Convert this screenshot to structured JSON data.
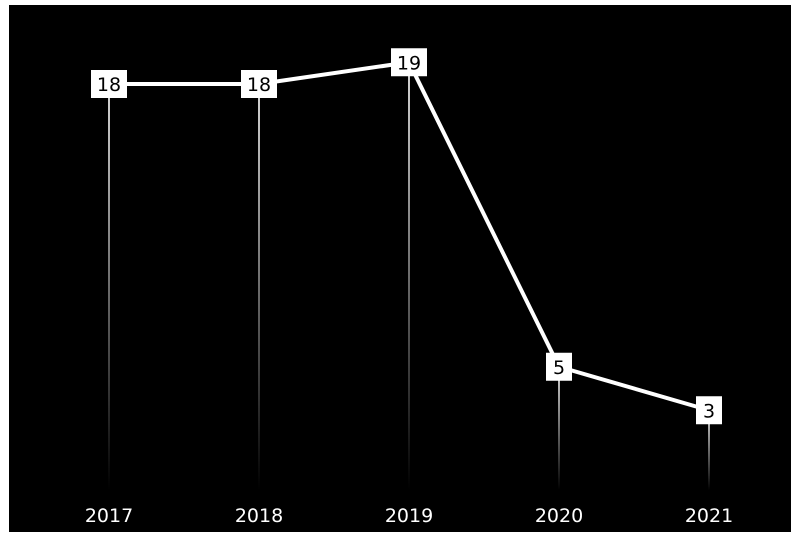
{
  "chart_data": {
    "type": "line",
    "categories": [
      "2017",
      "2018",
      "2019",
      "2020",
      "2021"
    ],
    "values": [
      18,
      18,
      19,
      5,
      3
    ],
    "title": "",
    "xlabel": "",
    "ylabel": "",
    "ylim": [
      0,
      20
    ],
    "grid": false,
    "legend": "none",
    "colors": {
      "background": "#000000",
      "line": "#ffffff",
      "label_box": "#ffffff",
      "label_text": "#000000"
    }
  }
}
